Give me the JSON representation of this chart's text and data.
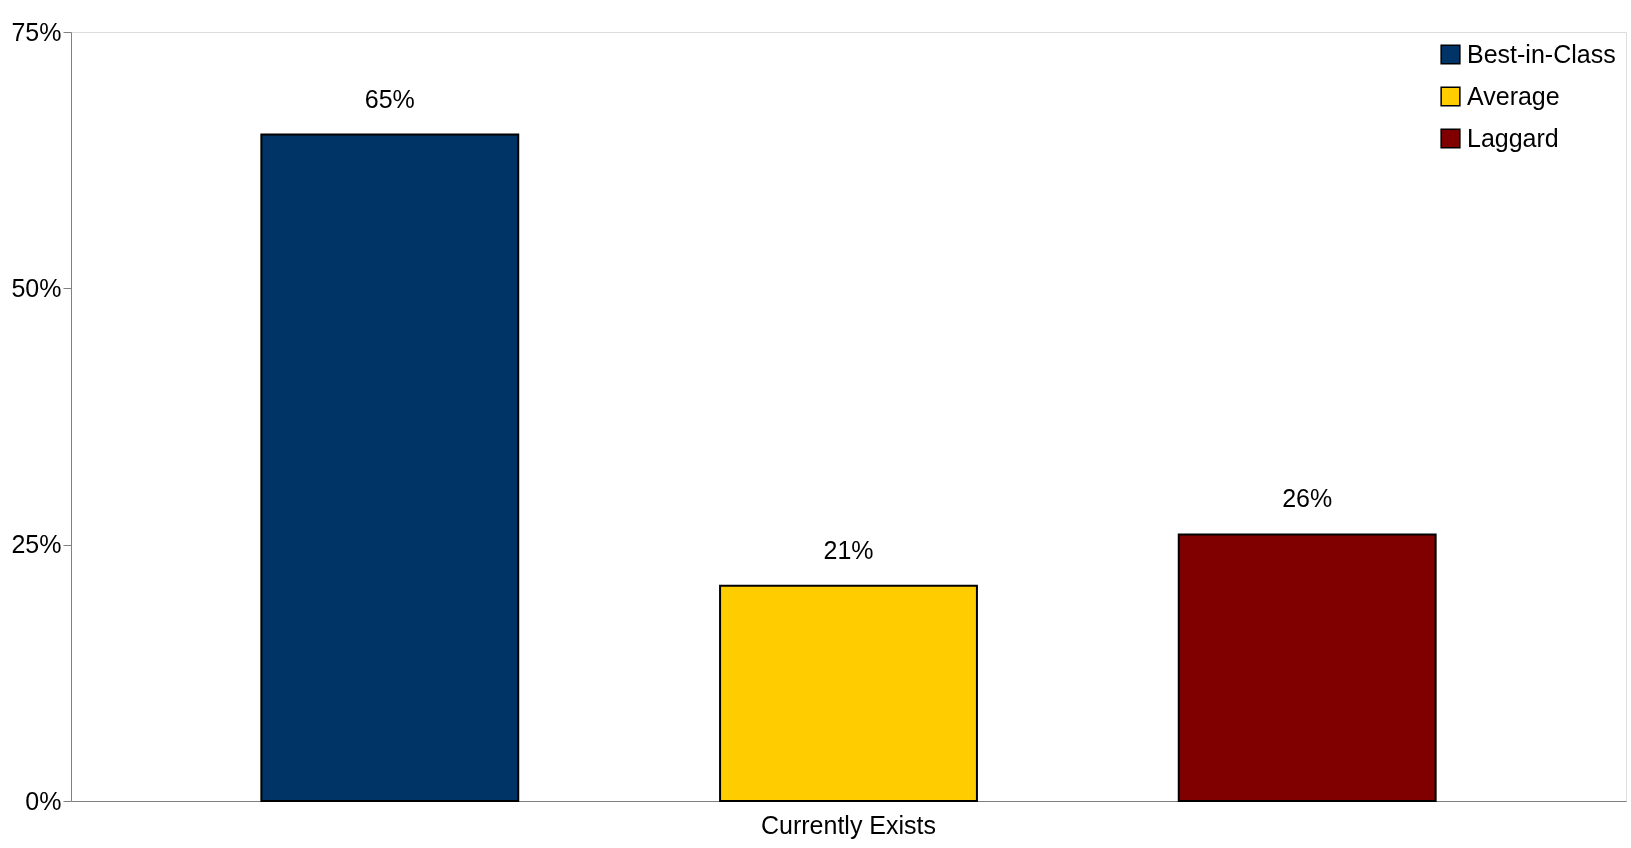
{
  "chart_data": {
    "type": "bar",
    "categories": [
      "Currently Exists"
    ],
    "series": [
      {
        "name": "Best-in-Class",
        "color": "#003366",
        "values": [
          65
        ],
        "value_labels": [
          "65%"
        ]
      },
      {
        "name": "Average",
        "color": "#ffcc00",
        "values": [
          21
        ],
        "value_labels": [
          "21%"
        ]
      },
      {
        "name": "Laggard",
        "color": "#800000",
        "values": [
          26
        ],
        "value_labels": [
          "26%"
        ]
      }
    ],
    "ylim": [
      0,
      75
    ],
    "yticks": [
      {
        "value": 0,
        "label": "0%"
      },
      {
        "value": 25,
        "label": "25%"
      },
      {
        "value": 50,
        "label": "50%"
      },
      {
        "value": 75,
        "label": "75%"
      }
    ],
    "grid": false,
    "legend": "top right"
  }
}
